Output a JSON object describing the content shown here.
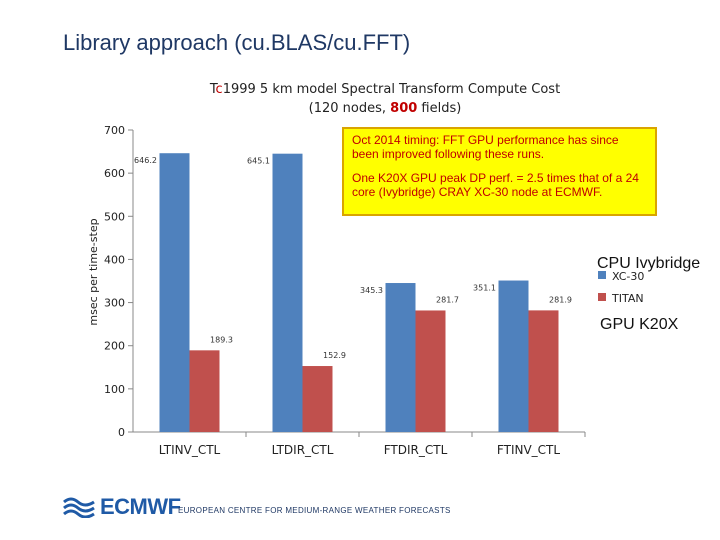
{
  "slide": {
    "title": "Library approach (cu.BLAS/cu.FFT)",
    "footer": "EUROPEAN CENTRE FOR MEDIUM-RANGE WEATHER FORECASTS",
    "logo_text": "ECMWF",
    "logo_icon": "ecmwf-wave-icon"
  },
  "chart_data": {
    "type": "bar",
    "title_parts": {
      "pre": "T",
      "accent": "c",
      "mid": "1999 5 km model Spectral Transform Compute Cost",
      "line2_pre": "(120 nodes, ",
      "line2_accent": "800",
      "line2_post": " fields)"
    },
    "ylabel": "msec per time-step",
    "xlabel": "",
    "ylim": [
      0,
      700
    ],
    "yticks": [
      "0",
      "100",
      "200",
      "300",
      "400",
      "500",
      "600",
      "700"
    ],
    "grid": false,
    "legend_placement": "right",
    "categories": [
      "LTINV_CTL",
      "LTDIR_CTL",
      "FTDIR_CTL",
      "FTINV_CTL"
    ],
    "series": [
      {
        "name": "XC-30",
        "color": "#4f81bd",
        "values": [
          646.2,
          645.1,
          345.3,
          351.1
        ],
        "labels": [
          "646.2",
          "645.1",
          "345.3",
          "351.1"
        ]
      },
      {
        "name": "TITAN",
        "color": "#c0504d",
        "values": [
          189.3,
          152.9,
          281.7,
          281.9
        ],
        "labels": [
          "189.3",
          "152.9",
          "281.7",
          "281.9"
        ]
      }
    ],
    "annotation_lines": [
      "Oct 2014 timing: FFT GPU performance has since been improved following these runs.",
      "One K20X GPU peak DP perf. = 2.5 times that of a 24 core (Ivybridge) CRAY XC-30 node at ECMWF."
    ],
    "side_labels": {
      "cpu": "CPU Ivybridge",
      "gpu": "GPU K20X"
    }
  }
}
